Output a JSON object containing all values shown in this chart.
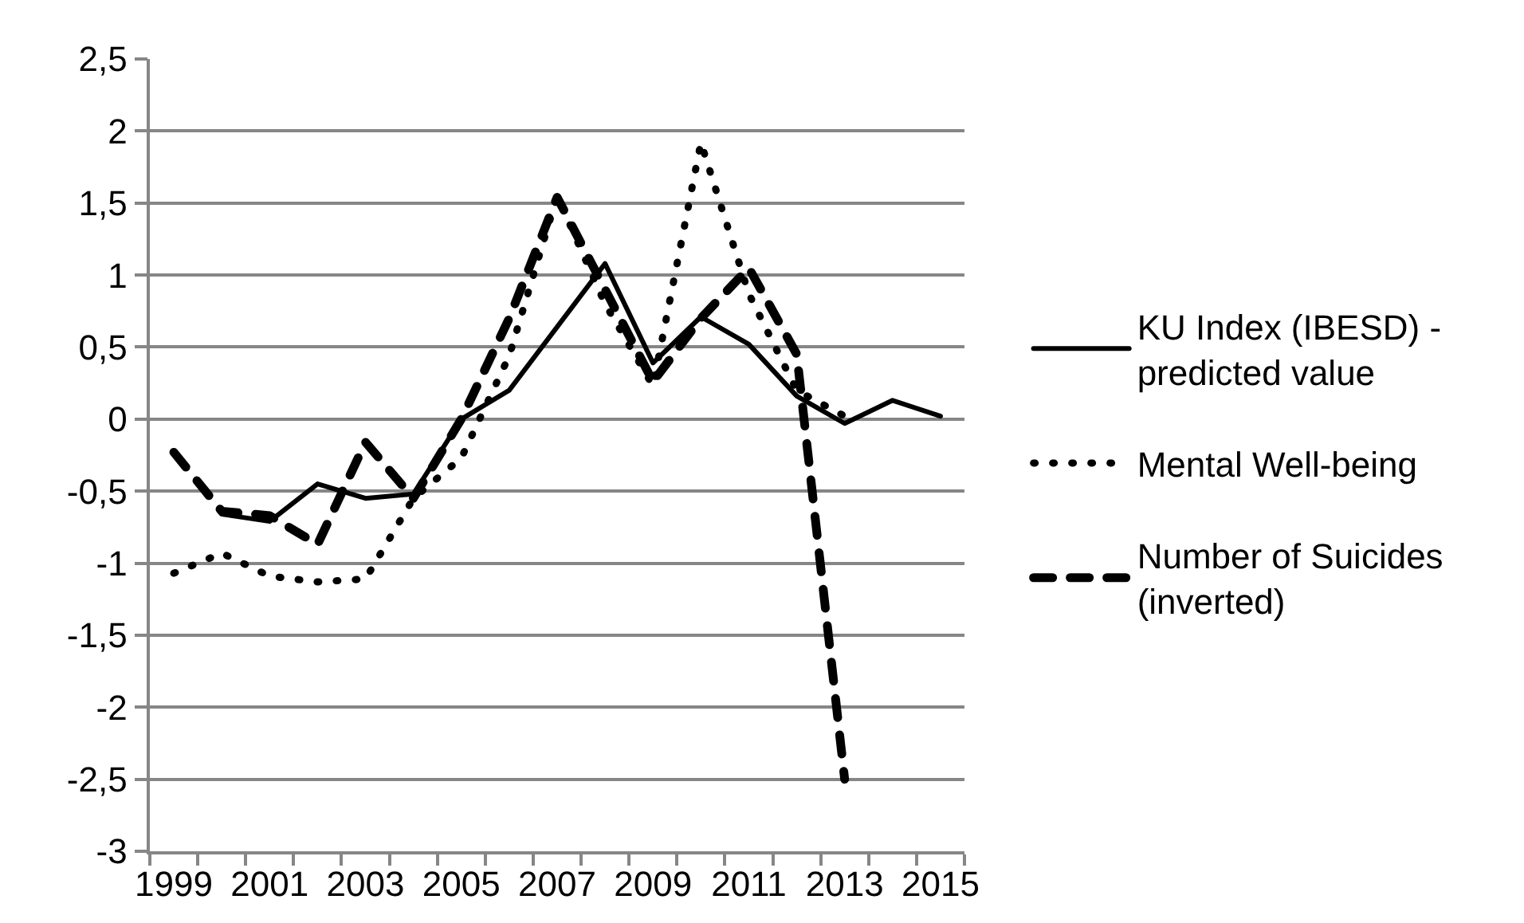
{
  "chart_data": {
    "type": "line",
    "categories": [
      "1999",
      null,
      "2001",
      null,
      "2003",
      null,
      "2005",
      null,
      "2007",
      null,
      "2009",
      null,
      "2011",
      null,
      "2013",
      null,
      "2015"
    ],
    "ylim": [
      -3,
      2.5
    ],
    "yticks": [
      -3,
      {
        "value": -2.5,
        "label": "-2,5"
      },
      -2,
      {
        "value": -1.5,
        "label": "-1,5"
      },
      -1,
      {
        "value": -0.5,
        "label": "-0,5"
      },
      0,
      {
        "value": 0.5,
        "label": "0,5"
      },
      1,
      {
        "value": 1.5,
        "label": "1,5"
      },
      2,
      {
        "value": 2.5,
        "label": "2,5"
      }
    ],
    "grid": "y",
    "legend": "right",
    "series": [
      {
        "name": "KU Index (IBESD) - predicted value",
        "color": "#000000",
        "line_style": "solid",
        "values": [
          null,
          -0.66,
          -0.71,
          -0.45,
          -0.55,
          -0.52,
          0.0,
          0.2,
          0.64,
          1.08,
          0.39,
          0.71,
          0.52,
          0.16,
          -0.03,
          0.13,
          0.02
        ]
      },
      {
        "name": "Mental Well-being",
        "color": "#000000",
        "line_style": "dotted",
        "values": [
          -1.07,
          -0.93,
          -1.09,
          -1.13,
          -1.11,
          -0.55,
          -0.27,
          0.44,
          1.55,
          0.8,
          0.23,
          1.92,
          0.87,
          0.2,
          0.02,
          null,
          null
        ]
      },
      {
        "name": "Number of Suicides (inverted)",
        "color": "#000000",
        "line_style": "dashed",
        "values": [
          -0.23,
          -0.64,
          -0.67,
          -0.87,
          -0.16,
          -0.55,
          0.0,
          0.7,
          1.54,
          0.9,
          0.26,
          0.7,
          1.05,
          0.45,
          -2.5,
          null,
          null
        ]
      }
    ]
  }
}
